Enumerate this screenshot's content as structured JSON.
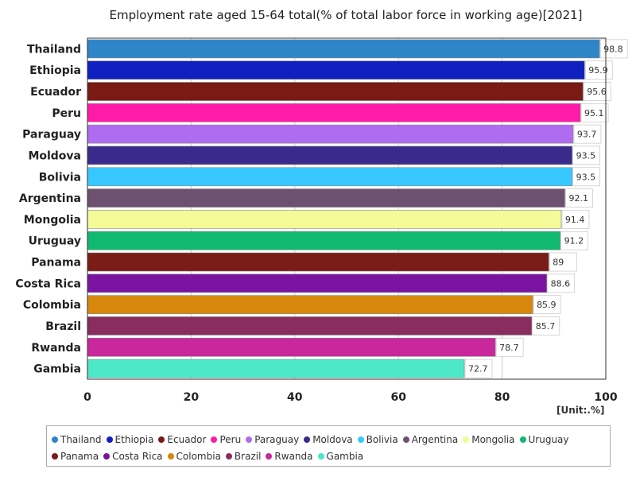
{
  "chart_data": {
    "type": "bar",
    "orientation": "horizontal",
    "title": "Employment rate aged 15-64 total(% of total labor force in working age)[2021]",
    "unit": "[Unit:.%]",
    "xlim": [
      0,
      100
    ],
    "ticks": [
      0,
      20,
      40,
      60,
      80,
      100
    ],
    "grid": true,
    "legend_position": "bottom",
    "categories": [
      "Thailand",
      "Ethiopia",
      "Ecuador",
      "Peru",
      "Paraguay",
      "Moldova",
      "Bolivia",
      "Argentina",
      "Mongolia",
      "Uruguay",
      "Panama",
      "Costa Rica",
      "Colombia",
      "Brazil",
      "Rwanda",
      "Gambia"
    ],
    "values": [
      98.8,
      95.9,
      95.6,
      95.1,
      93.7,
      93.5,
      93.5,
      92.1,
      91.4,
      91.2,
      89,
      88.6,
      85.9,
      85.7,
      78.7,
      72.7
    ],
    "labels": [
      "98.8",
      "95.9",
      "95.6",
      "95.1",
      "93.7",
      "93.5",
      "93.5",
      "92.1",
      "91.4",
      "91.2",
      "89",
      "88.6",
      "85.9",
      "85.7",
      "78.7",
      "72.7"
    ],
    "colors": [
      "#2e86c8",
      "#1020c0",
      "#7a1a14",
      "#ff1aa8",
      "#b06cf0",
      "#3a2a8c",
      "#38c8ff",
      "#6e5070",
      "#f4fa98",
      "#10b870",
      "#7a1c18",
      "#7a14a0",
      "#d8880c",
      "#8a2c5e",
      "#c8289c",
      "#4ce8c8"
    ]
  }
}
